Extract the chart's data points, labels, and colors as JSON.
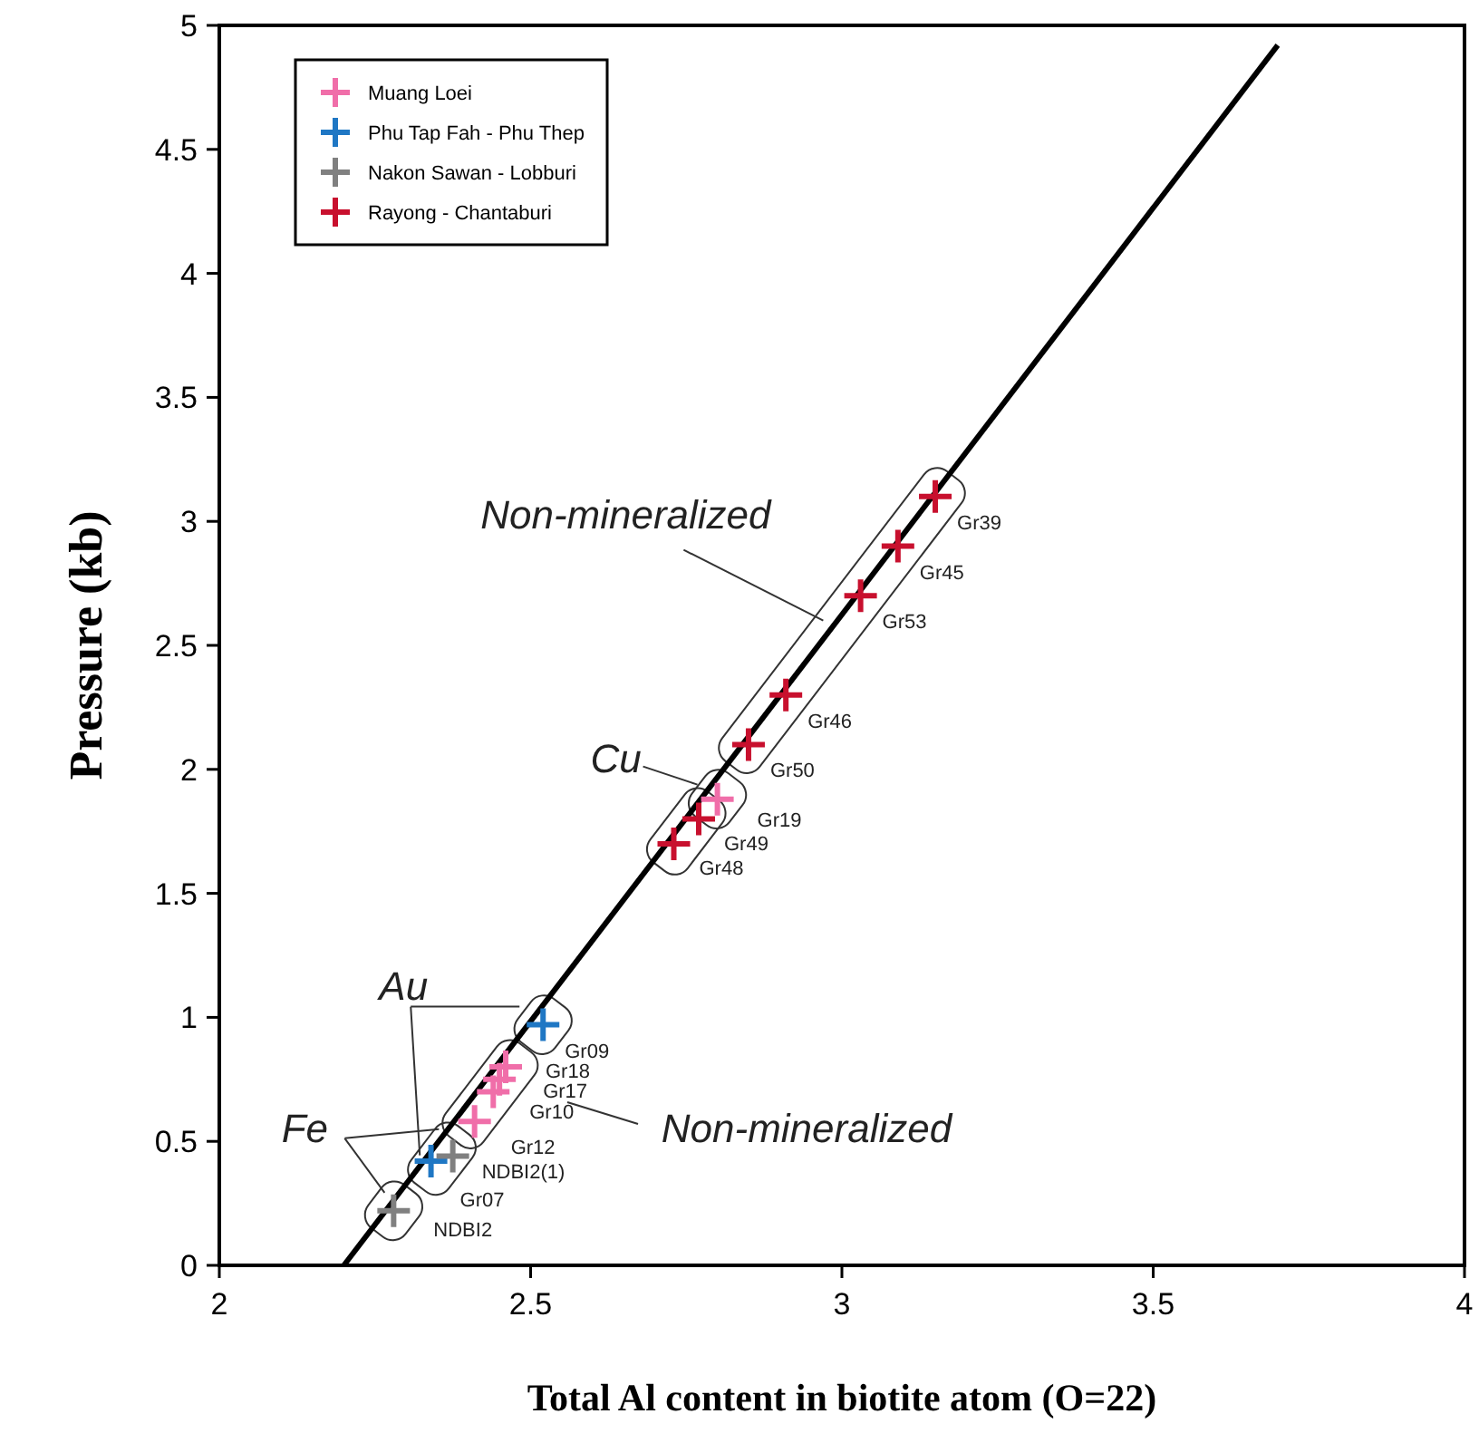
{
  "chart_data": {
    "type": "scatter",
    "xlabel": "Total Al content in biotite atom (O=22)",
    "ylabel": "Pressure (kb)",
    "xlim": [
      2,
      4
    ],
    "ylim": [
      0,
      5
    ],
    "xticks": [
      2,
      2.5,
      3,
      3.5,
      4
    ],
    "yticks": [
      0,
      0.5,
      1,
      1.5,
      2,
      2.5,
      3,
      3.5,
      4,
      4.5,
      5
    ],
    "grid": false,
    "legend": "top left",
    "marker": "cross",
    "series": [
      {
        "name": "Muang Loei",
        "color": "#f06ea9",
        "x": [
          2.8,
          2.46,
          2.45,
          2.44,
          2.41
        ],
        "values": [
          1.88,
          0.8,
          0.75,
          0.7,
          0.58
        ]
      },
      {
        "name": "Phu Tap Fah - Phu Thep",
        "color": "#1f77c4",
        "x": [
          2.52,
          2.34
        ],
        "values": [
          0.97,
          0.42
        ]
      },
      {
        "name": "Nakon Sawan - Lobburi",
        "color": "#808080",
        "x": [
          2.375,
          2.28
        ],
        "values": [
          0.44,
          0.22
        ]
      },
      {
        "name": "Rayong - Chantaburi",
        "color": "#c8102e",
        "x": [
          3.15,
          3.09,
          3.03,
          2.91,
          2.85,
          2.77,
          2.73
        ],
        "values": [
          3.1,
          2.9,
          2.7,
          2.3,
          2.1,
          1.8,
          1.7
        ]
      },
      {
        "type": "line",
        "color": "#000000",
        "marker": "none",
        "x": [
          2.2,
          3.7
        ],
        "values": [
          0,
          4.92
        ]
      }
    ],
    "annotations": [
      {
        "text": "Non-mineralized",
        "x": 2.97,
        "y": 2.6
      },
      {
        "text": "Cu",
        "x": 2.8,
        "y": 1.88
      },
      {
        "text": "Au",
        "x": 2.52,
        "y": 0.97
      },
      {
        "text": "Fe",
        "x": 2.28,
        "y": 0.22
      },
      "Non-mineralized",
      {
        "text": "Gr39",
        "x": 3.15,
        "y": 3.1
      },
      {
        "text": "Gr45",
        "x": 3.09,
        "y": 2.9
      },
      {
        "text": "Gr53",
        "x": 3.03,
        "y": 2.7
      },
      {
        "text": "Gr46",
        "x": 2.91,
        "y": 2.3
      },
      {
        "text": "Gr50",
        "x": 2.85,
        "y": 2.1
      },
      {
        "text": "Gr19",
        "x": 2.8,
        "y": 1.88
      },
      {
        "text": "Gr49",
        "x": 2.77,
        "y": 1.8
      },
      {
        "text": "Gr48",
        "x": 2.73,
        "y": 1.7
      },
      {
        "text": "Gr09",
        "x": 2.52,
        "y": 0.97
      },
      {
        "text": "Gr18",
        "x": 2.46,
        "y": 0.8
      },
      {
        "text": "Gr17",
        "x": 2.45,
        "y": 0.75
      },
      {
        "text": "Gr10",
        "x": 2.44,
        "y": 0.7
      },
      {
        "text": "Gr12",
        "x": 2.41,
        "y": 0.58
      },
      {
        "text": "NDBI2(1)",
        "x": 2.375,
        "y": 0.44
      },
      {
        "text": "Gr07",
        "x": 2.34,
        "y": 0.42
      },
      {
        "text": "NDBI2",
        "x": 2.28,
        "y": 0.22
      }
    ]
  }
}
